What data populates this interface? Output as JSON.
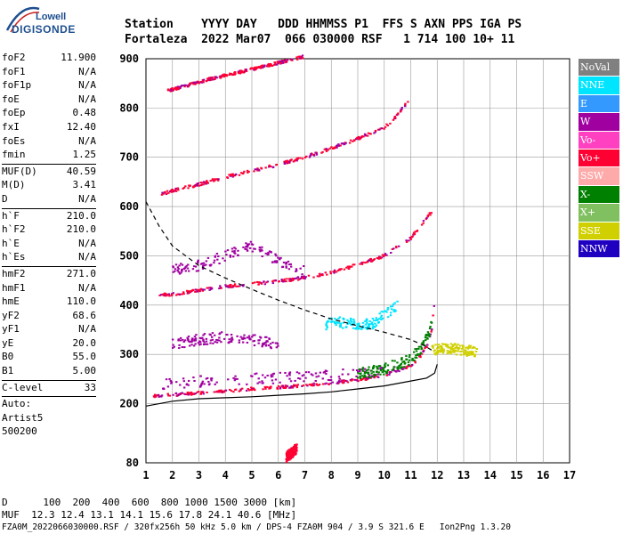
{
  "logo": {
    "brand_top": "Lowell",
    "brand_bottom": "DIGISONDE"
  },
  "header": {
    "line1": "Station    YYYY DAY   DDD HHMMSS P1  FFS S AXN PPS IGA PS",
    "line2": "Fortaleza  2022 Mar07  066 030000 RSF   1 714 100 10+ 11"
  },
  "params": [
    {
      "group": [
        {
          "name": "foF2",
          "value": "11.900"
        },
        {
          "name": "foF1",
          "value": "N/A"
        },
        {
          "name": "foF1p",
          "value": "N/A"
        },
        {
          "name": "foE",
          "value": "N/A"
        },
        {
          "name": "foEp",
          "value": "0.48"
        },
        {
          "name": "fxI",
          "value": "12.40"
        },
        {
          "name": "foEs",
          "value": "N/A"
        },
        {
          "name": "fmin",
          "value": "1.25"
        }
      ]
    },
    {
      "group": [
        {
          "name": "MUF(D)",
          "value": "40.59"
        },
        {
          "name": "M(D)",
          "value": "3.41"
        },
        {
          "name": "D",
          "value": "N/A"
        }
      ]
    },
    {
      "group": [
        {
          "name": "h`F",
          "value": "210.0"
        },
        {
          "name": "h`F2",
          "value": "210.0"
        },
        {
          "name": "h`E",
          "value": "N/A"
        },
        {
          "name": "h`Es",
          "value": "N/A"
        }
      ]
    },
    {
      "group": [
        {
          "name": "hmF2",
          "value": "271.0"
        },
        {
          "name": "hmF1",
          "value": "N/A"
        },
        {
          "name": "hmE",
          "value": "110.0"
        },
        {
          "name": "yF2",
          "value": "68.6"
        },
        {
          "name": "yF1",
          "value": "N/A"
        },
        {
          "name": "yE",
          "value": "20.0"
        },
        {
          "name": "B0",
          "value": "55.0"
        },
        {
          "name": "B1",
          "value": "5.00"
        }
      ]
    },
    {
      "group": [
        {
          "name": "C-level",
          "value": "33"
        }
      ]
    }
  ],
  "auto": {
    "line1": "Auto:",
    "line2": "Artist5",
    "line3": "500200"
  },
  "legend": [
    {
      "label": "NoVal",
      "color": "#808080"
    },
    {
      "label": "NNE",
      "color": "#00e5ff"
    },
    {
      "label": "E",
      "color": "#3399ff"
    },
    {
      "label": "W",
      "color": "#a000a0"
    },
    {
      "label": "Vo-",
      "color": "#ff40c0"
    },
    {
      "label": "Vo+",
      "color": "#ff0033"
    },
    {
      "label": "SSW",
      "color": "#ffaaaa"
    },
    {
      "label": "X-",
      "color": "#008000"
    },
    {
      "label": "X+",
      "color": "#80c060"
    },
    {
      "label": "SSE",
      "color": "#d0d000"
    },
    {
      "label": "NNW",
      "color": "#2000c0"
    }
  ],
  "footer": {
    "line1": "D      100  200  400  600  800 1000 1500 3000 [km]",
    "line2": "MUF  12.3 12.4 13.1 14.1 15.6 17.8 24.1 40.6 [MHz]",
    "line3": "FZA0M_2022066030000.RSF / 320fx256h 50 kHz 5.0 km / DPS-4 FZA0M 904 / 3.9 S 321.6 E   Ion2Png 1.3.20"
  },
  "chart_data": {
    "type": "scatter",
    "title": "",
    "xlabel": "",
    "ylabel": "",
    "xlim": [
      1,
      17
    ],
    "ylim": [
      80,
      900
    ],
    "x_ticks": [
      1,
      2,
      3,
      4,
      5,
      6,
      7,
      8,
      9,
      10,
      11,
      12,
      13,
      14,
      15,
      16,
      17
    ],
    "y_ticks": [
      80,
      200,
      300,
      400,
      500,
      600,
      700,
      800,
      900
    ],
    "grid": true,
    "series": [
      {
        "name": "Vo+",
        "color": "#ff0033",
        "kind": "trace",
        "x": [
          1.3,
          2,
          3,
          4,
          5,
          6,
          7,
          8,
          9,
          10,
          10.5,
          11,
          11.3,
          11.6,
          11.8,
          11.9
        ],
        "y": [
          215,
          218,
          222,
          226,
          230,
          233,
          237,
          242,
          248,
          258,
          266,
          278,
          292,
          316,
          350,
          410
        ]
      },
      {
        "name": "Vo+",
        "color": "#ff0033",
        "kind": "trace",
        "x": [
          1.5,
          2,
          3,
          4,
          5,
          6,
          7,
          8,
          9,
          10,
          10.5,
          11,
          11.5,
          11.8
        ],
        "y": [
          420,
          422,
          430,
          438,
          443,
          448,
          456,
          466,
          482,
          500,
          518,
          535,
          570,
          590
        ]
      },
      {
        "name": "Vo+",
        "color": "#ff0033",
        "kind": "trace",
        "x": [
          1.6,
          2,
          3,
          4,
          5,
          6,
          7,
          8,
          9,
          10,
          10.5,
          10.9
        ],
        "y": [
          625,
          632,
          645,
          660,
          672,
          685,
          700,
          718,
          738,
          760,
          785,
          815
        ]
      },
      {
        "name": "Vo+",
        "color": "#ff0033",
        "kind": "trace",
        "x": [
          1.8,
          2.5,
          3.5,
          4.5,
          5.5,
          6.5,
          7
        ],
        "y": [
          835,
          845,
          860,
          872,
          885,
          898,
          905
        ]
      },
      {
        "name": "W",
        "color": "#a000a0",
        "kind": "band",
        "x": [
          1.5,
          3,
          5,
          7,
          9,
          10.5
        ],
        "y": [
          240,
          245,
          250,
          255,
          260,
          265
        ]
      },
      {
        "name": "W",
        "color": "#a000a0",
        "kind": "band",
        "x": [
          2,
          3,
          4,
          5,
          6
        ],
        "y": [
          320,
          330,
          335,
          330,
          320
        ]
      },
      {
        "name": "W",
        "color": "#a000a0",
        "kind": "band",
        "x": [
          2,
          3,
          4,
          5,
          6,
          7
        ],
        "y": [
          470,
          480,
          500,
          520,
          490,
          470
        ]
      },
      {
        "name": "NNE",
        "color": "#00e5ff",
        "kind": "band",
        "x": [
          7.8,
          8.2,
          9.5,
          10,
          10.5
        ],
        "y": [
          360,
          365,
          360,
          380,
          400
        ]
      },
      {
        "name": "SSE",
        "color": "#d0d000",
        "kind": "band",
        "x": [
          11.8,
          12.5,
          13,
          13.5
        ],
        "y": [
          310,
          312,
          308,
          305
        ]
      },
      {
        "name": "X-",
        "color": "#008000",
        "kind": "band",
        "x": [
          9,
          10,
          11,
          11.5,
          11.8
        ],
        "y": [
          260,
          270,
          290,
          320,
          360
        ]
      },
      {
        "name": "Vo+",
        "color": "#ff0033",
        "kind": "band",
        "x": [
          6.3,
          6.5,
          6.7
        ],
        "y": [
          90,
          100,
          110
        ]
      }
    ],
    "profile": {
      "x": [
        1,
        2,
        3,
        4,
        5,
        6,
        7,
        8,
        9,
        10,
        11,
        11.6,
        11.9,
        12
      ],
      "y": [
        195,
        205,
        210,
        212,
        214,
        217,
        220,
        224,
        230,
        236,
        246,
        252,
        262,
        280
      ]
    },
    "muf_curve": {
      "x": [
        1,
        1.5,
        2,
        3,
        4,
        5,
        6,
        7,
        8,
        9,
        10,
        11,
        11.5,
        11.9
      ],
      "y": [
        610,
        560,
        520,
        480,
        455,
        432,
        410,
        390,
        372,
        358,
        345,
        330,
        318,
        305
      ]
    }
  }
}
